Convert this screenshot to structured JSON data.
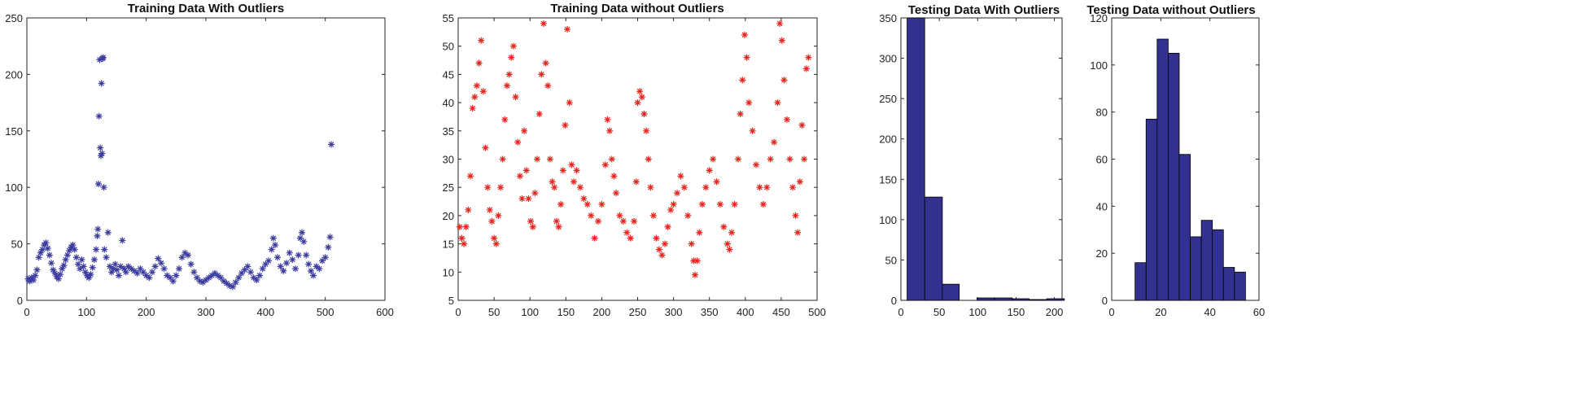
{
  "chart_data": [
    {
      "type": "scatter",
      "title": "Training Data With Outliers",
      "xlim": [
        0,
        600
      ],
      "ylim": [
        0,
        250
      ],
      "xticks": [
        0,
        100,
        200,
        300,
        400,
        500,
        600
      ],
      "yticks": [
        0,
        50,
        100,
        150,
        200,
        250
      ],
      "marker": "*",
      "color": "#3b3ba0",
      "points": [
        [
          2,
          19
        ],
        [
          5,
          17
        ],
        [
          8,
          20
        ],
        [
          11,
          18
        ],
        [
          14,
          22
        ],
        [
          17,
          27
        ],
        [
          20,
          38
        ],
        [
          23,
          42
        ],
        [
          26,
          45
        ],
        [
          29,
          49
        ],
        [
          32,
          51
        ],
        [
          35,
          46
        ],
        [
          38,
          40
        ],
        [
          41,
          33
        ],
        [
          44,
          27
        ],
        [
          47,
          24
        ],
        [
          50,
          21
        ],
        [
          53,
          19
        ],
        [
          56,
          23
        ],
        [
          59,
          28
        ],
        [
          62,
          31
        ],
        [
          65,
          36
        ],
        [
          68,
          40
        ],
        [
          71,
          44
        ],
        [
          74,
          47
        ],
        [
          77,
          49
        ],
        [
          80,
          45
        ],
        [
          83,
          38
        ],
        [
          86,
          32
        ],
        [
          89,
          28
        ],
        [
          92,
          36
        ],
        [
          95,
          30
        ],
        [
          98,
          25
        ],
        [
          101,
          22
        ],
        [
          104,
          20
        ],
        [
          107,
          23
        ],
        [
          110,
          29
        ],
        [
          113,
          36
        ],
        [
          116,
          45
        ],
        [
          118,
          57
        ],
        [
          119,
          63
        ],
        [
          120,
          103
        ],
        [
          121,
          163
        ],
        [
          122,
          213
        ],
        [
          123,
          135
        ],
        [
          124,
          128
        ],
        [
          125,
          192
        ],
        [
          126,
          130
        ],
        [
          127,
          214
        ],
        [
          128,
          215
        ],
        [
          129,
          100
        ],
        [
          130,
          45
        ],
        [
          133,
          38
        ],
        [
          136,
          60
        ],
        [
          139,
          30
        ],
        [
          142,
          25
        ],
        [
          145,
          28
        ],
        [
          148,
          32
        ],
        [
          151,
          27
        ],
        [
          154,
          22
        ],
        [
          157,
          30
        ],
        [
          160,
          53
        ],
        [
          163,
          28
        ],
        [
          166,
          25
        ],
        [
          170,
          30
        ],
        [
          175,
          28
        ],
        [
          180,
          26
        ],
        [
          185,
          24
        ],
        [
          190,
          28
        ],
        [
          195,
          25
        ],
        [
          200,
          22
        ],
        [
          205,
          20
        ],
        [
          210,
          25
        ],
        [
          215,
          30
        ],
        [
          220,
          37
        ],
        [
          225,
          33
        ],
        [
          230,
          28
        ],
        [
          235,
          22
        ],
        [
          240,
          20
        ],
        [
          245,
          17
        ],
        [
          250,
          22
        ],
        [
          255,
          28
        ],
        [
          260,
          38
        ],
        [
          265,
          42
        ],
        [
          270,
          40
        ],
        [
          275,
          32
        ],
        [
          280,
          25
        ],
        [
          285,
          20
        ],
        [
          290,
          17
        ],
        [
          295,
          16
        ],
        [
          300,
          18
        ],
        [
          305,
          20
        ],
        [
          310,
          22
        ],
        [
          315,
          24
        ],
        [
          320,
          22
        ],
        [
          325,
          20
        ],
        [
          330,
          17
        ],
        [
          335,
          15
        ],
        [
          340,
          13
        ],
        [
          345,
          12
        ],
        [
          350,
          16
        ],
        [
          355,
          20
        ],
        [
          360,
          24
        ],
        [
          365,
          27
        ],
        [
          370,
          30
        ],
        [
          375,
          25
        ],
        [
          380,
          20
        ],
        [
          385,
          18
        ],
        [
          390,
          22
        ],
        [
          395,
          28
        ],
        [
          400,
          32
        ],
        [
          405,
          35
        ],
        [
          410,
          45
        ],
        [
          413,
          55
        ],
        [
          416,
          49
        ],
        [
          420,
          38
        ],
        [
          425,
          30
        ],
        [
          430,
          26
        ],
        [
          435,
          33
        ],
        [
          440,
          42
        ],
        [
          445,
          36
        ],
        [
          450,
          28
        ],
        [
          455,
          40
        ],
        [
          458,
          55
        ],
        [
          461,
          60
        ],
        [
          464,
          52
        ],
        [
          468,
          40
        ],
        [
          472,
          32
        ],
        [
          476,
          26
        ],
        [
          480,
          22
        ],
        [
          485,
          30
        ],
        [
          490,
          28
        ],
        [
          495,
          35
        ],
        [
          500,
          38
        ],
        [
          505,
          47
        ],
        [
          508,
          56
        ],
        [
          510,
          138
        ]
      ]
    },
    {
      "type": "scatter",
      "title": "Training Data without Outliers",
      "xlim": [
        0,
        500
      ],
      "ylim": [
        5,
        55
      ],
      "xticks": [
        0,
        50,
        100,
        150,
        200,
        250,
        300,
        350,
        400,
        450,
        500
      ],
      "yticks": [
        5,
        10,
        15,
        20,
        25,
        30,
        35,
        40,
        45,
        50,
        55
      ],
      "marker": "*",
      "color": "#e8241c",
      "points": [
        [
          2,
          18
        ],
        [
          5,
          16
        ],
        [
          8,
          15
        ],
        [
          11,
          18
        ],
        [
          14,
          21
        ],
        [
          17,
          27
        ],
        [
          20,
          39
        ],
        [
          23,
          41
        ],
        [
          26,
          43
        ],
        [
          29,
          47
        ],
        [
          32,
          51
        ],
        [
          35,
          42
        ],
        [
          38,
          32
        ],
        [
          41,
          25
        ],
        [
          44,
          21
        ],
        [
          47,
          19
        ],
        [
          50,
          16
        ],
        [
          53,
          15
        ],
        [
          56,
          20
        ],
        [
          59,
          25
        ],
        [
          62,
          30
        ],
        [
          65,
          37
        ],
        [
          68,
          43
        ],
        [
          71,
          45
        ],
        [
          74,
          48
        ],
        [
          77,
          50
        ],
        [
          80,
          41
        ],
        [
          83,
          33
        ],
        [
          86,
          27
        ],
        [
          89,
          23
        ],
        [
          92,
          35
        ],
        [
          95,
          28
        ],
        [
          98,
          23
        ],
        [
          101,
          19
        ],
        [
          104,
          18
        ],
        [
          107,
          24
        ],
        [
          110,
          30
        ],
        [
          113,
          38
        ],
        [
          116,
          45
        ],
        [
          119,
          54
        ],
        [
          122,
          47
        ],
        [
          125,
          43
        ],
        [
          128,
          30
        ],
        [
          131,
          26
        ],
        [
          134,
          25
        ],
        [
          137,
          19
        ],
        [
          140,
          18
        ],
        [
          143,
          22
        ],
        [
          146,
          28
        ],
        [
          149,
          36
        ],
        [
          152,
          53
        ],
        [
          155,
          40
        ],
        [
          158,
          29
        ],
        [
          161,
          26
        ],
        [
          165,
          28
        ],
        [
          170,
          25
        ],
        [
          175,
          23
        ],
        [
          180,
          22
        ],
        [
          185,
          20
        ],
        [
          190,
          16
        ],
        [
          195,
          19
        ],
        [
          200,
          22
        ],
        [
          205,
          29
        ],
        [
          208,
          37
        ],
        [
          211,
          35
        ],
        [
          214,
          30
        ],
        [
          217,
          27
        ],
        [
          220,
          24
        ],
        [
          225,
          20
        ],
        [
          230,
          19
        ],
        [
          235,
          17
        ],
        [
          240,
          16
        ],
        [
          245,
          19
        ],
        [
          248,
          26
        ],
        [
          250,
          40
        ],
        [
          253,
          42
        ],
        [
          256,
          41
        ],
        [
          259,
          38
        ],
        [
          262,
          35
        ],
        [
          265,
          30
        ],
        [
          268,
          25
        ],
        [
          272,
          20
        ],
        [
          276,
          16
        ],
        [
          280,
          14
        ],
        [
          284,
          13
        ],
        [
          288,
          15
        ],
        [
          292,
          18
        ],
        [
          296,
          21
        ],
        [
          300,
          22
        ],
        [
          305,
          24
        ],
        [
          310,
          27
        ],
        [
          315,
          25
        ],
        [
          320,
          20
        ],
        [
          325,
          15
        ],
        [
          328,
          12
        ],
        [
          330,
          9.5
        ],
        [
          333,
          12
        ],
        [
          336,
          17
        ],
        [
          340,
          22
        ],
        [
          345,
          25
        ],
        [
          350,
          28
        ],
        [
          355,
          30
        ],
        [
          360,
          26
        ],
        [
          365,
          22
        ],
        [
          370,
          18
        ],
        [
          375,
          15
        ],
        [
          378,
          14
        ],
        [
          381,
          17
        ],
        [
          385,
          22
        ],
        [
          390,
          30
        ],
        [
          393,
          38
        ],
        [
          396,
          44
        ],
        [
          399,
          52
        ],
        [
          402,
          48
        ],
        [
          405,
          40
        ],
        [
          410,
          35
        ],
        [
          415,
          29
        ],
        [
          420,
          25
        ],
        [
          425,
          22
        ],
        [
          430,
          25
        ],
        [
          435,
          30
        ],
        [
          440,
          33
        ],
        [
          445,
          40
        ],
        [
          448,
          54
        ],
        [
          451,
          51
        ],
        [
          454,
          44
        ],
        [
          458,
          37
        ],
        [
          462,
          30
        ],
        [
          466,
          25
        ],
        [
          470,
          20
        ],
        [
          473,
          17
        ],
        [
          476,
          26
        ],
        [
          479,
          36
        ],
        [
          482,
          30
        ],
        [
          485,
          46
        ],
        [
          488,
          48
        ]
      ]
    },
    {
      "type": "bar",
      "title": "Testing Data With Outliers",
      "xlim": [
        0,
        210
      ],
      "ylim": [
        0,
        350
      ],
      "xticks": [
        0,
        50,
        100,
        150,
        200
      ],
      "yticks": [
        0,
        50,
        100,
        150,
        200,
        250,
        300,
        350
      ],
      "color": "#33318f",
      "bins": [
        [
          8,
          31,
          350
        ],
        [
          31,
          54,
          128
        ],
        [
          54,
          76,
          20
        ],
        [
          76,
          99,
          0
        ],
        [
          99,
          122,
          3
        ],
        [
          122,
          145,
          3
        ],
        [
          145,
          167,
          2
        ],
        [
          167,
          190,
          1
        ],
        [
          190,
          213,
          2
        ]
      ]
    },
    {
      "type": "bar",
      "title": "Testing Data without Outliers",
      "xlim": [
        0,
        60
      ],
      "ylim": [
        0,
        120
      ],
      "xticks": [
        0,
        20,
        40,
        60
      ],
      "yticks": [
        0,
        20,
        40,
        60,
        80,
        100,
        120
      ],
      "color": "#33318f",
      "bins": [
        [
          9.5,
          14.0,
          16
        ],
        [
          14.0,
          18.5,
          77
        ],
        [
          18.5,
          23.0,
          111
        ],
        [
          23.0,
          27.5,
          105
        ],
        [
          27.5,
          32.0,
          62
        ],
        [
          32.0,
          36.5,
          27
        ],
        [
          36.5,
          41.0,
          34
        ],
        [
          41.0,
          45.5,
          30
        ],
        [
          45.5,
          50.0,
          14
        ],
        [
          50.0,
          54.5,
          12
        ]
      ]
    }
  ]
}
